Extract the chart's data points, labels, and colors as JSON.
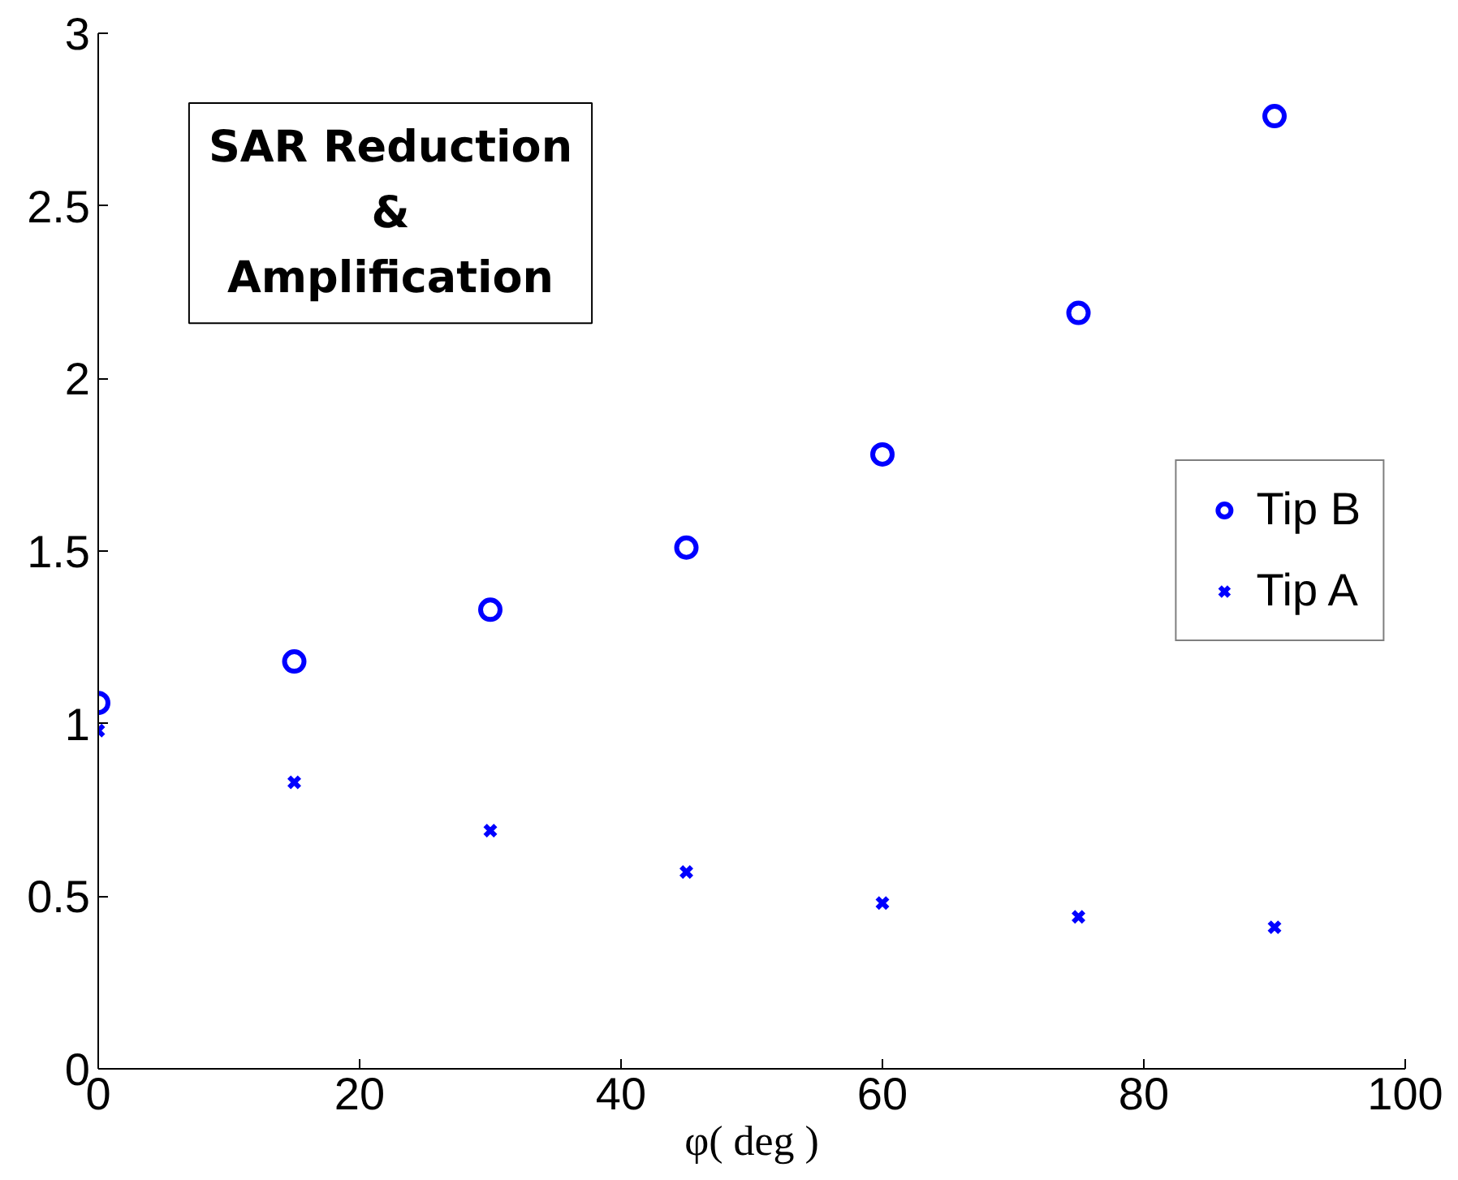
{
  "chart_data": {
    "type": "scatter",
    "xlabel": "φ( deg )",
    "annotations": [
      "SAR Reduction\n&\nAmplification"
    ],
    "x": [
      0,
      15,
      30,
      45,
      60,
      75,
      90
    ],
    "series": [
      {
        "name": "Tip B",
        "color": "#0000ff",
        "marker": "circle",
        "values": [
          1.06,
          1.18,
          1.33,
          1.51,
          1.78,
          2.19,
          2.76
        ]
      },
      {
        "name": "Tip A",
        "color": "#0000ff",
        "marker": "cross",
        "values": [
          0.98,
          0.83,
          0.69,
          0.57,
          0.48,
          0.44,
          0.41
        ]
      }
    ],
    "xlim": [
      0,
      100
    ],
    "ylim": [
      0,
      3
    ],
    "xticks": [
      0,
      20,
      40,
      60,
      80,
      100
    ],
    "yticks": [
      0,
      0.5,
      1,
      1.5,
      2,
      2.5,
      3
    ],
    "grid": false,
    "legend": "right"
  }
}
